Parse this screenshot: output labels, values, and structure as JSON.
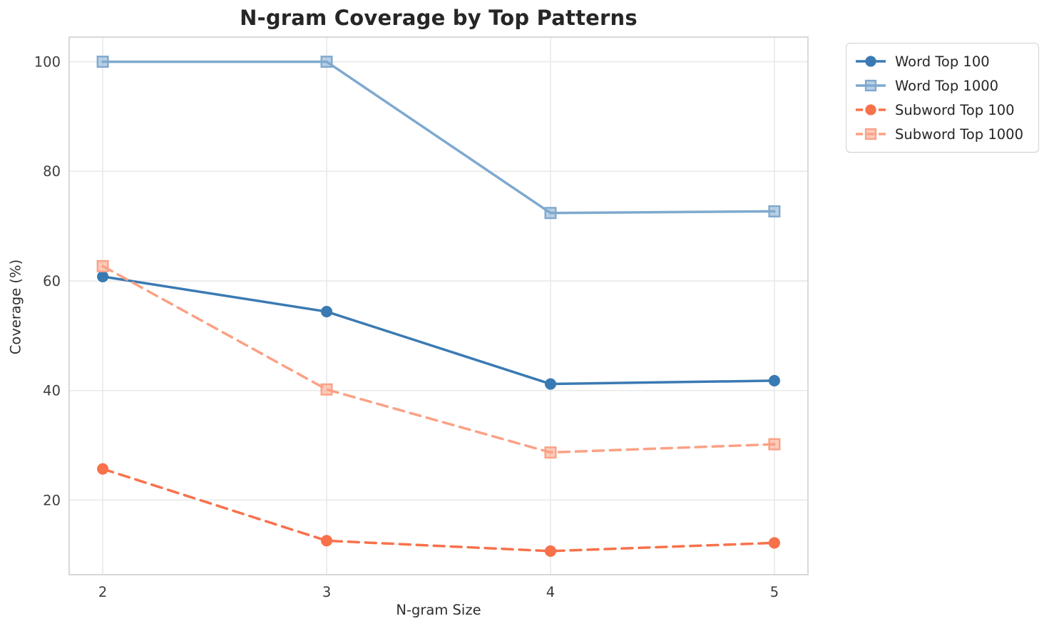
{
  "title": "N-gram Coverage by Top Patterns",
  "chart_data": {
    "type": "line",
    "title": "N-gram Coverage by Top Patterns",
    "xlabel": "N-gram Size",
    "ylabel": "Coverage (%)",
    "x": [
      2,
      3,
      4,
      5
    ],
    "x_ticks": [
      "2",
      "3",
      "4",
      "5"
    ],
    "y_ticks": [
      20,
      40,
      60,
      80,
      100
    ],
    "xlim": [
      1.85,
      5.15
    ],
    "ylim": [
      6.4,
      104.5
    ],
    "grid": true,
    "legend_position": "outside upper right",
    "series": [
      {
        "name": "Word Top 100",
        "values": [
          60.8,
          54.4,
          41.2,
          41.8
        ],
        "color": "#3a7ab3",
        "line_style": "solid",
        "marker": "circle"
      },
      {
        "name": "Word Top 1000",
        "values": [
          100.0,
          100.0,
          72.4,
          72.7
        ],
        "color": "#7fa9cf",
        "line_style": "solid",
        "marker": "square"
      },
      {
        "name": "Subword Top 100",
        "values": [
          25.7,
          12.6,
          10.7,
          12.2
        ],
        "color": "#f8714b",
        "line_style": "dashed",
        "marker": "circle"
      },
      {
        "name": "Subword Top 1000",
        "values": [
          62.7,
          40.2,
          28.7,
          30.2
        ],
        "color": "#fba184",
        "line_style": "dashed",
        "marker": "square"
      }
    ],
    "colors": {
      "grid": "#e9e9e9",
      "frame": "#cccccc",
      "tick_text": "#3d3d3d",
      "title_text": "#262626"
    }
  }
}
